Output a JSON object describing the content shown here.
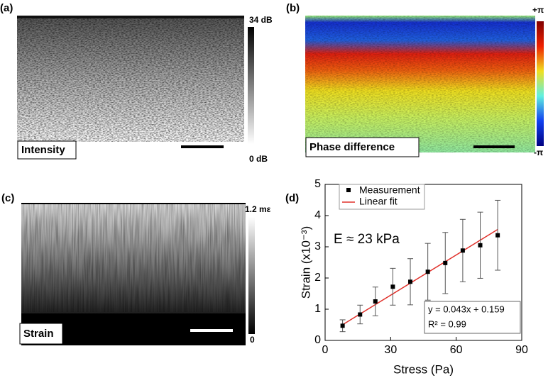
{
  "panels": {
    "a": {
      "label": "(a)",
      "caption": "Intensity",
      "colorbar_max": "34 dB",
      "colorbar_min": "0 dB"
    },
    "b": {
      "label": "(b)",
      "caption": "Phase difference",
      "colorbar_max": "+π",
      "colorbar_min": "-π"
    },
    "c": {
      "label": "(c)",
      "caption": "Strain",
      "colorbar_max": "1.2 mε",
      "colorbar_min": "0"
    },
    "d": {
      "label": "(d)"
    }
  },
  "chart_data": {
    "type": "scatter",
    "xlabel": "Stress (Pa)",
    "ylabel": "Strain (x10⁻³)",
    "xlim": [
      0,
      90
    ],
    "xticks": [
      0,
      30,
      60,
      90
    ],
    "ylim": [
      0,
      5
    ],
    "yticks": [
      0,
      1,
      2,
      3,
      4,
      5
    ],
    "annotations": [
      "E ≈ 23 kPa",
      "y = 0.043x + 0.159",
      "R² = 0.99"
    ],
    "series": [
      {
        "name": "Measurement",
        "color": "#000000",
        "x": [
          8,
          16,
          23,
          31,
          39,
          47,
          55,
          63,
          71,
          79
        ],
        "values": [
          0.47,
          0.83,
          1.25,
          1.72,
          1.88,
          2.2,
          2.48,
          2.88,
          3.05,
          3.37
        ],
        "errors": [
          0.19,
          0.3,
          0.46,
          0.59,
          0.74,
          0.91,
          0.98,
          1.0,
          1.06,
          1.12
        ]
      },
      {
        "name": "Linear fit",
        "color": "#e0302a",
        "x": [
          8,
          79
        ],
        "values": [
          0.503,
          3.556
        ]
      }
    ]
  }
}
